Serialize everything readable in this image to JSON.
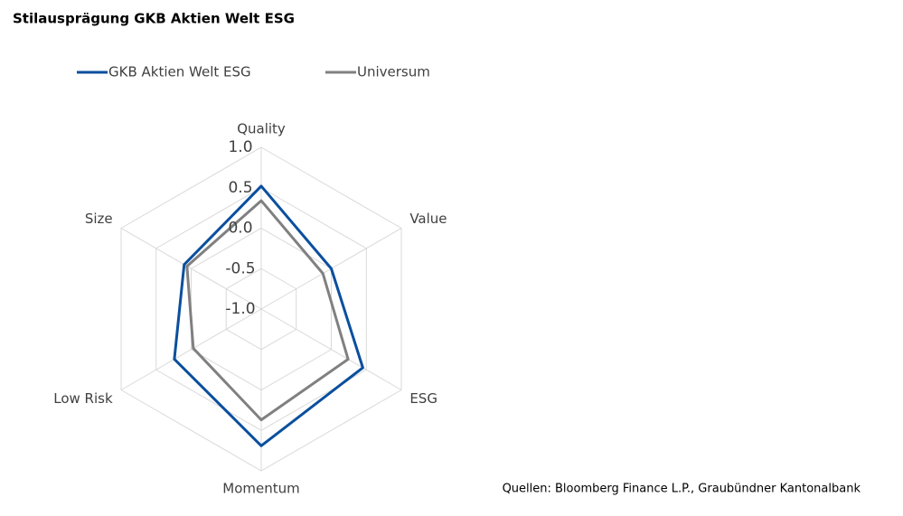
{
  "chart_data": {
    "type": "radar",
    "title": "Stilausprägung GKB Aktien Welt ESG",
    "source": "Quellen: Bloomberg Finance L.P., Graubündner Kantonalbank",
    "categories": [
      "Quality",
      "Value",
      "ESG",
      "Momentum",
      "Low Risk",
      "Size"
    ],
    "series": [
      {
        "name": "GKB Aktien Welt ESG",
        "color": "#0a4f9e",
        "values": [
          0.52,
          0.0,
          0.45,
          0.69,
          0.24,
          0.1
        ]
      },
      {
        "name": "Universum",
        "color": "#808080",
        "values": [
          0.34,
          -0.12,
          0.24,
          0.37,
          -0.03,
          0.06
        ]
      }
    ],
    "ylim": [
      -1,
      1
    ],
    "yticks": [
      {
        "value": 1,
        "label": "1.0"
      },
      0.5,
      {
        "value": 0,
        "label": "0.0"
      },
      -0.5,
      {
        "value": -1,
        "label": "-1.0"
      }
    ],
    "grid": true
  }
}
